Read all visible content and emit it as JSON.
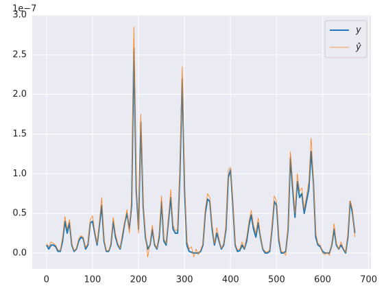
{
  "chart_data": {
    "type": "line",
    "offset_label": "1e−7",
    "x": [
      0,
      5,
      10,
      15,
      20,
      25,
      30,
      35,
      40,
      45,
      50,
      55,
      60,
      65,
      70,
      75,
      80,
      85,
      90,
      95,
      100,
      105,
      110,
      115,
      120,
      125,
      130,
      135,
      140,
      145,
      150,
      155,
      160,
      165,
      170,
      175,
      180,
      185,
      190,
      195,
      200,
      205,
      210,
      215,
      220,
      225,
      230,
      235,
      240,
      245,
      250,
      255,
      260,
      265,
      270,
      275,
      280,
      285,
      290,
      295,
      300,
      305,
      310,
      315,
      320,
      325,
      330,
      335,
      340,
      345,
      350,
      355,
      360,
      365,
      370,
      375,
      380,
      385,
      390,
      395,
      400,
      405,
      410,
      415,
      420,
      425,
      430,
      435,
      440,
      445,
      450,
      455,
      460,
      465,
      470,
      475,
      480,
      485,
      490,
      495,
      500,
      505,
      510,
      515,
      520,
      525,
      530,
      535,
      540,
      545,
      550,
      555,
      560,
      565,
      570,
      575,
      580,
      585,
      590,
      595,
      600,
      605,
      610,
      615,
      620,
      625,
      630,
      635,
      640,
      645,
      650,
      655,
      660,
      665,
      670
    ],
    "series": [
      {
        "name": "y",
        "color": "#1f77b4",
        "values": [
          0.1,
          0.05,
          0.1,
          0.1,
          0.08,
          0.02,
          0.02,
          0.15,
          0.4,
          0.25,
          0.38,
          0.1,
          0.02,
          0.05,
          0.15,
          0.2,
          0.18,
          0.05,
          0.1,
          0.38,
          0.4,
          0.25,
          0.1,
          0.35,
          0.6,
          0.15,
          0.02,
          0.02,
          0.1,
          0.4,
          0.2,
          0.1,
          0.05,
          0.2,
          0.38,
          0.5,
          0.3,
          0.6,
          2.58,
          0.8,
          0.3,
          1.65,
          0.6,
          0.2,
          0.05,
          0.1,
          0.3,
          0.1,
          0.05,
          0.2,
          0.65,
          0.15,
          0.1,
          0.4,
          0.7,
          0.3,
          0.25,
          0.25,
          1.0,
          2.2,
          0.8,
          0.1,
          0.02,
          0.01,
          0.0,
          0.0,
          0.0,
          0.02,
          0.1,
          0.5,
          0.68,
          0.65,
          0.3,
          0.1,
          0.25,
          0.15,
          0.05,
          0.1,
          0.3,
          0.95,
          1.05,
          0.6,
          0.1,
          0.02,
          0.03,
          0.1,
          0.05,
          0.15,
          0.35,
          0.48,
          0.3,
          0.2,
          0.38,
          0.2,
          0.05,
          0.0,
          0.0,
          0.02,
          0.3,
          0.65,
          0.6,
          0.15,
          0.0,
          0.0,
          0.02,
          0.3,
          1.2,
          0.8,
          0.45,
          0.9,
          0.7,
          0.75,
          0.5,
          0.65,
          0.8,
          1.28,
          0.9,
          0.2,
          0.1,
          0.08,
          0.02,
          0.0,
          0.0,
          0.0,
          0.1,
          0.3,
          0.1,
          0.05,
          0.1,
          0.05,
          0.0,
          0.2,
          0.65,
          0.5,
          0.25
        ]
      },
      {
        "name": "ŷ",
        "color": "#ff7f0e",
        "values": [
          0.12,
          0.08,
          0.14,
          0.12,
          0.1,
          0.04,
          0.03,
          0.2,
          0.46,
          0.3,
          0.42,
          0.12,
          0.03,
          0.06,
          0.18,
          0.22,
          0.2,
          0.07,
          0.12,
          0.42,
          0.47,
          0.28,
          0.12,
          0.4,
          0.7,
          0.18,
          0.03,
          0.03,
          0.12,
          0.45,
          0.24,
          0.12,
          0.06,
          0.25,
          0.4,
          0.55,
          0.25,
          0.7,
          2.85,
          0.9,
          0.25,
          1.75,
          0.65,
          0.25,
          -0.05,
          0.12,
          0.35,
          0.12,
          0.06,
          0.25,
          0.72,
          0.18,
          0.12,
          0.45,
          0.8,
          0.35,
          0.28,
          0.3,
          1.1,
          2.35,
          0.9,
          0.15,
          0.05,
          0.08,
          -0.05,
          0.05,
          -0.02,
          0.04,
          0.12,
          0.55,
          0.75,
          0.7,
          0.35,
          0.12,
          0.32,
          0.18,
          0.06,
          0.12,
          0.35,
          1.05,
          1.08,
          0.65,
          0.12,
          0.04,
          0.05,
          0.14,
          0.06,
          0.2,
          0.4,
          0.54,
          0.35,
          0.25,
          0.44,
          0.22,
          0.06,
          0.02,
          0.01,
          0.04,
          0.35,
          0.72,
          0.65,
          0.2,
          0.02,
          0.01,
          -0.03,
          0.35,
          1.28,
          0.9,
          0.5,
          1.0,
          0.78,
          0.82,
          0.55,
          0.72,
          0.9,
          1.45,
          0.95,
          0.25,
          0.12,
          0.1,
          0.0,
          -0.02,
          0.01,
          -0.03,
          0.12,
          0.37,
          0.12,
          0.05,
          0.14,
          0.06,
          0.01,
          0.25,
          0.66,
          0.55,
          0.2
        ]
      }
    ],
    "xlim": [
      -31,
      705
    ],
    "ylim": [
      -0.2,
      3.0
    ],
    "xticks": [
      0,
      100,
      200,
      300,
      400,
      500,
      600,
      700
    ],
    "yticks": [
      {
        "value": 0,
        "label": "0.0"
      },
      0.5,
      {
        "value": 1,
        "label": "1.0"
      },
      1.5,
      {
        "value": 2,
        "label": "2.0"
      },
      2.5,
      {
        "value": 3,
        "label": "3.0"
      }
    ],
    "grid": true,
    "legend": "upper right"
  }
}
